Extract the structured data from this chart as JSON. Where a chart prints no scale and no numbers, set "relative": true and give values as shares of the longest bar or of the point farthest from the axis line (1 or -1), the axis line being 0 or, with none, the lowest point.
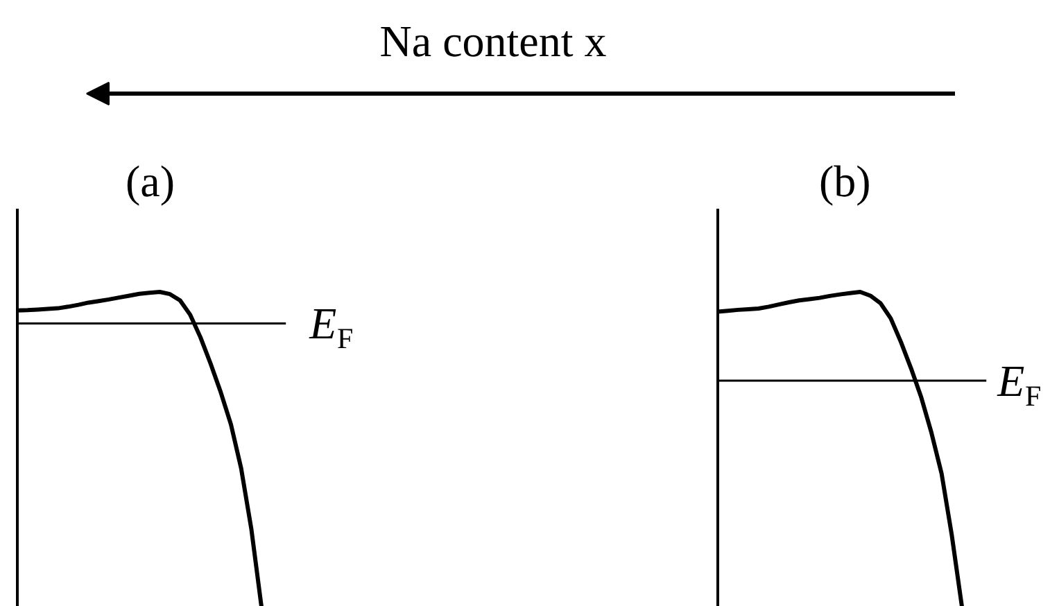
{
  "chart_data": [
    {
      "type": "line",
      "title": "(a)",
      "relative": true,
      "annotations": [
        "Na content x"
      ],
      "categories": [
        null,
        null,
        null,
        null,
        null,
        null,
        null,
        null,
        null,
        null,
        null,
        null,
        null,
        null,
        null,
        null,
        null,
        null,
        null,
        null,
        null,
        null,
        null,
        null,
        null
      ],
      "series": [
        {
          "color": "#000000",
          "values": [
            0.941,
            0.942,
            0.944,
            0.946,
            0.948,
            0.953,
            0.959,
            0.966,
            0.971,
            0.976,
            0.982,
            0.988,
            0.994,
            0.997,
            1.0,
            0.993,
            0.973,
            0.927,
            0.856,
            0.772,
            0.681,
            0.579,
            0.44,
            0.248,
            0.0
          ]
        }
      ],
      "ref_lines": [
        {
          "axis": "y",
          "value": 0.9,
          "label": "E$_{F}$"
        }
      ]
    },
    {
      "type": "line",
      "title": "(b)",
      "relative": true,
      "categories": [
        null,
        null,
        null,
        null,
        null,
        null,
        null,
        null,
        null,
        null,
        null,
        null,
        null,
        null,
        null,
        null,
        null,
        null,
        null,
        null,
        null,
        null,
        null,
        null,
        null
      ],
      "series": [
        {
          "color": "#000000",
          "values": [
            0.937,
            0.94,
            0.943,
            0.945,
            0.947,
            0.953,
            0.96,
            0.967,
            0.973,
            0.977,
            0.981,
            0.987,
            0.992,
            0.996,
            1.0,
            0.988,
            0.964,
            0.916,
            0.841,
            0.757,
            0.665,
            0.553,
            0.423,
            0.228,
            0.0
          ]
        }
      ],
      "ref_lines": [
        {
          "axis": "y",
          "value": 0.718,
          "label": "E$_{F}$"
        }
      ]
    }
  ]
}
